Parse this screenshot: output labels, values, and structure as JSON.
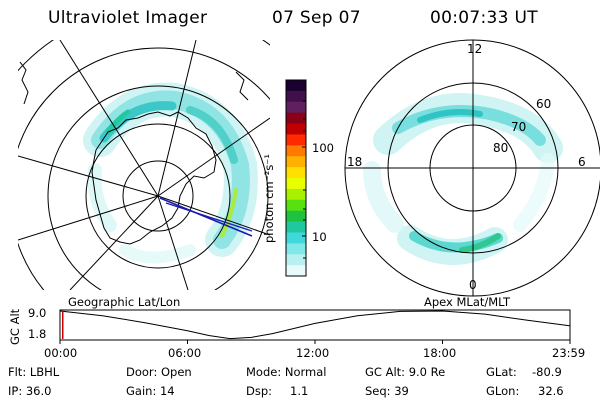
{
  "header": {
    "title": "Ultraviolet Imager",
    "date": "07 Sep 07",
    "time": "00:07:33 UT"
  },
  "colorbar": {
    "label": "photon cm⁻²s⁻¹",
    "ticks": [
      "100",
      "10"
    ],
    "colors": [
      "#1a0030",
      "#40104a",
      "#602060",
      "#8a0018",
      "#c00000",
      "#ff2a00",
      "#ff7a00",
      "#ffb000",
      "#ffe000",
      "#e8ff00",
      "#a8f000",
      "#58e010",
      "#20c040",
      "#20c8a0",
      "#40d8d8",
      "#80e8e8",
      "#b8f0f0",
      "#e8fafa"
    ]
  },
  "left_panel": {
    "caption": "Geographic Lat/Lon"
  },
  "right_panel": {
    "caption": "Apex MLat/MLT",
    "mlt_labels": {
      "top": "12",
      "left": "18",
      "right": "6",
      "bottom": "0"
    },
    "lat_labels": [
      "60",
      "70",
      "80"
    ]
  },
  "timeline": {
    "ylabel": "GC Alt",
    "y_ticks": [
      "9.0",
      "1.8"
    ],
    "x_ticks": [
      "00:00",
      "06:00",
      "12:00",
      "18:00",
      "23:59"
    ],
    "series": {
      "hours": [
        0,
        2,
        4,
        6,
        7,
        8,
        9,
        10,
        11,
        12,
        14,
        16,
        18,
        20,
        22,
        23.98
      ],
      "alt_re": [
        9.0,
        7.8,
        6.0,
        3.9,
        2.7,
        1.9,
        2.2,
        3.2,
        4.5,
        5.8,
        7.8,
        8.9,
        9.0,
        8.2,
        6.6,
        5.2
      ]
    },
    "cursor_hour": 0.13,
    "cursor_color": "#cc0000"
  },
  "status": {
    "filter": "Flt: LBHL",
    "ip": "IP: 36.0",
    "door": "Door: Open",
    "gain": "Gain: 14",
    "mode": "Mode: Normal",
    "dsp_label": "Dsp:",
    "dsp_value": "1.1",
    "gc_alt": "GC Alt: 9.0 Re",
    "seq": "Seq: 39",
    "glat_label": "GLat:",
    "glat_value": "-80.9",
    "glon_label": "GLon:",
    "glon_value": "32.6"
  }
}
